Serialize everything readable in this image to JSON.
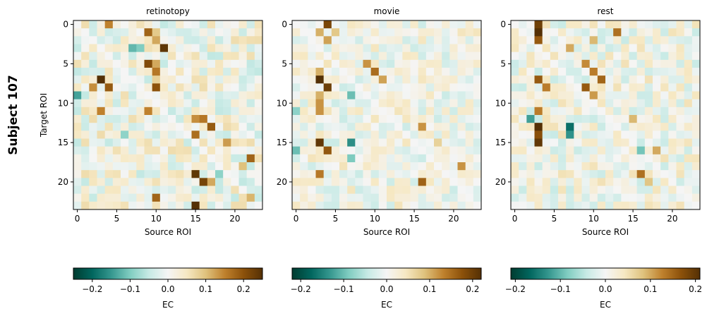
{
  "figure": {
    "suptitle": "Subject 107"
  },
  "chart_data": [
    {
      "type": "heatmap",
      "title": "retinotopy",
      "xlabel": "Source ROI",
      "ylabel": "Target ROI",
      "x_range": [
        0,
        23
      ],
      "y_range": [
        0,
        23
      ],
      "xticks": [
        0,
        5,
        10,
        15,
        20
      ],
      "yticks": [
        0,
        5,
        10,
        15,
        20
      ],
      "colormap": "BrBG_r",
      "colorbar": {
        "label": "EC",
        "vmin": -0.25,
        "vmax": 0.25,
        "ticks": [
          -0.2,
          -0.1,
          0.0,
          0.1,
          0.2
        ],
        "tick_labels": [
          "−0.2",
          "−0.1",
          "0.0",
          "0.1",
          "0.2"
        ]
      },
      "seed": 107,
      "base_amplitude": 0.06,
      "notable_values": [
        {
          "x": 4,
          "y": 0,
          "v": 0.15
        },
        {
          "x": 9,
          "y": 1,
          "v": 0.18
        },
        {
          "x": 10,
          "y": 1,
          "v": 0.09
        },
        {
          "x": 10,
          "y": 2,
          "v": 0.12
        },
        {
          "x": 11,
          "y": 3,
          "v": 0.24
        },
        {
          "x": 7,
          "y": 3,
          "v": -0.12
        },
        {
          "x": 8,
          "y": 3,
          "v": -0.1
        },
        {
          "x": 9,
          "y": 5,
          "v": 0.21
        },
        {
          "x": 10,
          "y": 5,
          "v": 0.12
        },
        {
          "x": 10,
          "y": 6,
          "v": 0.16
        },
        {
          "x": 3,
          "y": 7,
          "v": 0.25
        },
        {
          "x": 2,
          "y": 8,
          "v": 0.14
        },
        {
          "x": 4,
          "y": 8,
          "v": 0.19
        },
        {
          "x": 10,
          "y": 8,
          "v": 0.2
        },
        {
          "x": 10,
          "y": 7,
          "v": 0.08
        },
        {
          "x": 0,
          "y": 9,
          "v": -0.14
        },
        {
          "x": 3,
          "y": 11,
          "v": 0.15
        },
        {
          "x": 9,
          "y": 11,
          "v": 0.15
        },
        {
          "x": 15,
          "y": 12,
          "v": 0.14
        },
        {
          "x": 16,
          "y": 12,
          "v": 0.16
        },
        {
          "x": 17,
          "y": 13,
          "v": 0.19
        },
        {
          "x": 15,
          "y": 14,
          "v": 0.17
        },
        {
          "x": 19,
          "y": 15,
          "v": 0.13
        },
        {
          "x": 6,
          "y": 14,
          "v": -0.09
        },
        {
          "x": 22,
          "y": 17,
          "v": 0.18
        },
        {
          "x": 21,
          "y": 18,
          "v": 0.1
        },
        {
          "x": 15,
          "y": 19,
          "v": 0.24
        },
        {
          "x": 16,
          "y": 20,
          "v": 0.22
        },
        {
          "x": 10,
          "y": 22,
          "v": 0.18
        },
        {
          "x": 15,
          "y": 23,
          "v": 0.25
        },
        {
          "x": 22,
          "y": 22,
          "v": 0.11
        },
        {
          "x": 17,
          "y": 20,
          "v": 0.12
        },
        {
          "x": 18,
          "y": 19,
          "v": -0.09
        }
      ]
    },
    {
      "type": "heatmap",
      "title": "movie",
      "xlabel": "Source ROI",
      "ylabel": "",
      "x_range": [
        0,
        23
      ],
      "y_range": [
        0,
        23
      ],
      "xticks": [
        0,
        5,
        10,
        15,
        20
      ],
      "yticks": [
        0,
        5,
        10,
        15,
        20
      ],
      "colormap": "BrBG_r",
      "colorbar": {
        "label": "EC",
        "vmin": -0.22,
        "vmax": 0.22,
        "ticks": [
          -0.2,
          -0.1,
          0.0,
          0.1,
          0.2
        ],
        "tick_labels": [
          "−0.2",
          "−0.1",
          "0.0",
          "0.1",
          "0.2"
        ]
      },
      "seed": 211,
      "base_amplitude": 0.045,
      "notable_values": [
        {
          "x": 4,
          "y": 0,
          "v": 0.19
        },
        {
          "x": 3,
          "y": 1,
          "v": 0.1
        },
        {
          "x": 5,
          "y": 1,
          "v": 0.08
        },
        {
          "x": 4,
          "y": 2,
          "v": 0.11
        },
        {
          "x": 3,
          "y": 6,
          "v": 0.1
        },
        {
          "x": 9,
          "y": 5,
          "v": 0.12
        },
        {
          "x": 10,
          "y": 6,
          "v": 0.15
        },
        {
          "x": 11,
          "y": 7,
          "v": 0.11
        },
        {
          "x": 3,
          "y": 7,
          "v": 0.22
        },
        {
          "x": 4,
          "y": 8,
          "v": 0.2
        },
        {
          "x": 3,
          "y": 9,
          "v": 0.1
        },
        {
          "x": 7,
          "y": 9,
          "v": -0.1
        },
        {
          "x": 3,
          "y": 10,
          "v": 0.12
        },
        {
          "x": 3,
          "y": 11,
          "v": 0.12
        },
        {
          "x": 0,
          "y": 11,
          "v": -0.08
        },
        {
          "x": 16,
          "y": 13,
          "v": 0.12
        },
        {
          "x": 3,
          "y": 15,
          "v": 0.21
        },
        {
          "x": 4,
          "y": 16,
          "v": 0.17
        },
        {
          "x": 7,
          "y": 15,
          "v": -0.14
        },
        {
          "x": 7,
          "y": 17,
          "v": -0.09
        },
        {
          "x": 3,
          "y": 19,
          "v": 0.14
        },
        {
          "x": 16,
          "y": 20,
          "v": 0.16
        },
        {
          "x": 21,
          "y": 18,
          "v": 0.12
        },
        {
          "x": 18,
          "y": 15,
          "v": 0.07
        },
        {
          "x": 0,
          "y": 16,
          "v": -0.1
        }
      ]
    },
    {
      "type": "heatmap",
      "title": "rest",
      "xlabel": "Source ROI",
      "ylabel": "",
      "x_range": [
        0,
        23
      ],
      "y_range": [
        0,
        23
      ],
      "xticks": [
        0,
        5,
        10,
        15,
        20
      ],
      "yticks": [
        0,
        5,
        10,
        15,
        20
      ],
      "colormap": "BrBG_r",
      "colorbar": {
        "label": "EC",
        "vmin": -0.21,
        "vmax": 0.21,
        "ticks": [
          -0.2,
          -0.1,
          0.0,
          0.1,
          0.2
        ],
        "tick_labels": [
          "−0.2",
          "−0.1",
          "0.0",
          "0.1",
          "0.2"
        ]
      },
      "seed": 331,
      "base_amplitude": 0.045,
      "notable_values": [
        {
          "x": 3,
          "y": 0,
          "v": 0.19
        },
        {
          "x": 3,
          "y": 1,
          "v": 0.21
        },
        {
          "x": 3,
          "y": 2,
          "v": 0.16
        },
        {
          "x": 13,
          "y": 1,
          "v": 0.14
        },
        {
          "x": 10,
          "y": 2,
          "v": 0.09
        },
        {
          "x": 7,
          "y": 3,
          "v": 0.1
        },
        {
          "x": 9,
          "y": 5,
          "v": 0.12
        },
        {
          "x": 10,
          "y": 6,
          "v": 0.13
        },
        {
          "x": 11,
          "y": 7,
          "v": 0.15
        },
        {
          "x": 3,
          "y": 7,
          "v": 0.16
        },
        {
          "x": 4,
          "y": 8,
          "v": 0.13
        },
        {
          "x": 9,
          "y": 8,
          "v": 0.16
        },
        {
          "x": 10,
          "y": 9,
          "v": 0.11
        },
        {
          "x": 3,
          "y": 11,
          "v": 0.13
        },
        {
          "x": 2,
          "y": 12,
          "v": -0.12
        },
        {
          "x": 3,
          "y": 13,
          "v": 0.21
        },
        {
          "x": 3,
          "y": 14,
          "v": 0.17
        },
        {
          "x": 3,
          "y": 15,
          "v": 0.2
        },
        {
          "x": 7,
          "y": 13,
          "v": -0.16
        },
        {
          "x": 7,
          "y": 14,
          "v": -0.13
        },
        {
          "x": 16,
          "y": 19,
          "v": 0.14
        },
        {
          "x": 18,
          "y": 16,
          "v": 0.1
        },
        {
          "x": 17,
          "y": 20,
          "v": 0.08
        },
        {
          "x": 15,
          "y": 12,
          "v": 0.09
        },
        {
          "x": 16,
          "y": 16,
          "v": -0.09
        }
      ]
    }
  ]
}
